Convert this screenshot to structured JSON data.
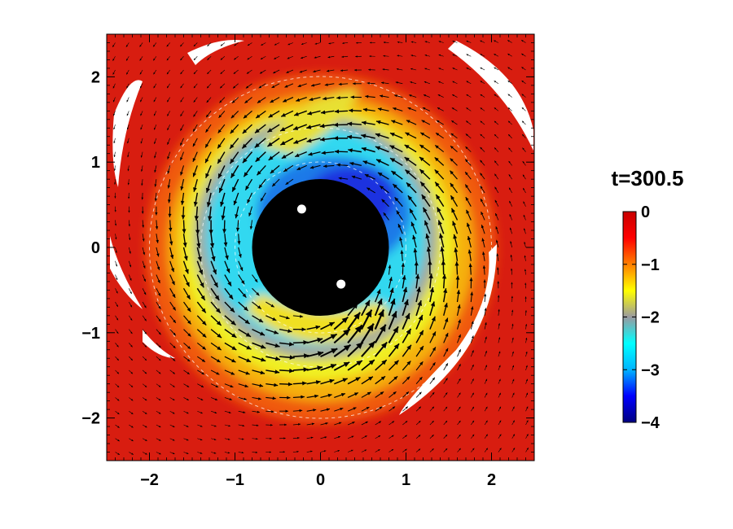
{
  "chart_data": {
    "type": "heatmap",
    "title": "t=300.5",
    "xlabel": "",
    "ylabel": "",
    "xlim": [
      -2.5,
      2.5
    ],
    "ylim": [
      -2.5,
      2.5
    ],
    "x_ticks": [
      -2,
      -1,
      0,
      1,
      2
    ],
    "y_ticks": [
      -2,
      -1,
      0,
      1,
      2
    ],
    "x_tick_labels": [
      "−2",
      "−1",
      "0",
      "1",
      "2"
    ],
    "y_tick_labels": [
      "−2",
      "−1",
      "0",
      "1",
      "2"
    ],
    "colorbar": {
      "range": [
        -4,
        0
      ],
      "ticks": [
        0,
        -1,
        -2,
        -3,
        -4
      ],
      "tick_labels": [
        "0",
        "−1",
        "−2",
        "−3",
        "−4"
      ],
      "colormap": [
        "#000080",
        "#0000ff",
        "#00b4ff",
        "#00ffff",
        "#9a9aa0",
        "#ffff00",
        "#ff8000",
        "#ff0000",
        "#c80000"
      ]
    },
    "excised_region": {
      "shape": "circle",
      "center": [
        0,
        0
      ],
      "radius": 0.8,
      "color": "#000000"
    },
    "point_masses": [
      {
        "x": -0.22,
        "y": 0.45
      },
      {
        "x": 0.24,
        "y": -0.43
      }
    ],
    "reference_circles_radii": [
      1.0,
      1.4,
      2.0
    ],
    "grid": false,
    "legend": "colorbar-right"
  }
}
